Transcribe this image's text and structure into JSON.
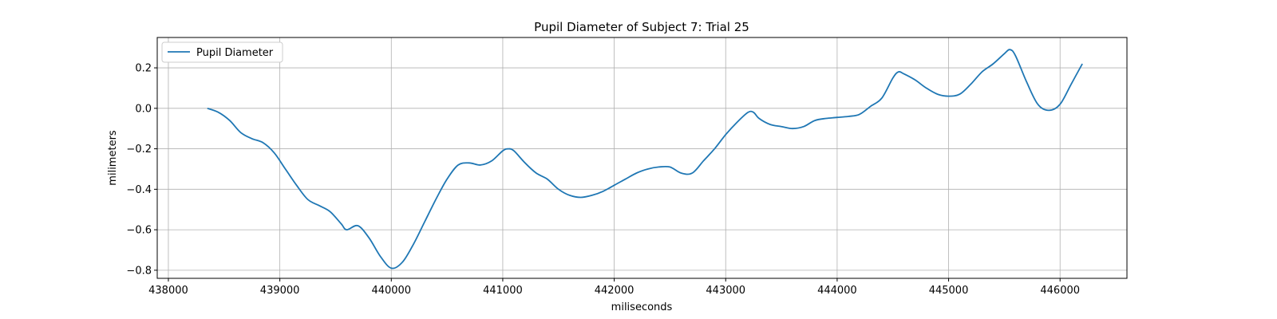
{
  "chart_data": {
    "type": "line",
    "title": "Pupil Diameter of Subject 7: Trial 25",
    "xlabel": "miliseconds",
    "ylabel": "milimeters",
    "xlim": [
      437900,
      446600
    ],
    "ylim": [
      -0.84,
      0.35
    ],
    "xticks": [
      438000,
      439000,
      440000,
      441000,
      442000,
      443000,
      444000,
      445000,
      446000
    ],
    "yticks": [
      -0.8,
      -0.6,
      -0.4,
      -0.2,
      0.0,
      0.2
    ],
    "ytick_labels": [
      "−0.8",
      "−0.6",
      "−0.4",
      "−0.2",
      "0.0",
      "0.2"
    ],
    "grid": true,
    "legend_position": "upper left",
    "color": "#1f77b4",
    "series": [
      {
        "name": "Pupil Diameter",
        "x": [
          438350,
          438450,
          438550,
          438650,
          438750,
          438850,
          438950,
          439050,
          439150,
          439250,
          439350,
          439450,
          439550,
          439600,
          439700,
          439800,
          439900,
          440000,
          440100,
          440200,
          440300,
          440400,
          440500,
          440600,
          440700,
          440800,
          440900,
          441000,
          441050,
          441100,
          441200,
          441300,
          441400,
          441500,
          441600,
          441700,
          441800,
          441900,
          442000,
          442100,
          442200,
          442300,
          442400,
          442500,
          442600,
          442700,
          442800,
          442900,
          443000,
          443100,
          443200,
          443250,
          443300,
          443400,
          443500,
          443600,
          443700,
          443800,
          443900,
          444000,
          444100,
          444200,
          444300,
          444400,
          444500,
          444550,
          444600,
          444700,
          444800,
          444900,
          445000,
          445100,
          445200,
          445300,
          445400,
          445500,
          445550,
          445600,
          445700,
          445800,
          445900,
          446000,
          446100,
          446200
        ],
        "y": [
          0.0,
          -0.02,
          -0.06,
          -0.12,
          -0.15,
          -0.17,
          -0.22,
          -0.3,
          -0.38,
          -0.45,
          -0.48,
          -0.51,
          -0.57,
          -0.6,
          -0.58,
          -0.64,
          -0.73,
          -0.79,
          -0.76,
          -0.67,
          -0.56,
          -0.45,
          -0.35,
          -0.28,
          -0.27,
          -0.28,
          -0.26,
          -0.21,
          -0.2,
          -0.21,
          -0.27,
          -0.32,
          -0.35,
          -0.4,
          -0.43,
          -0.44,
          -0.43,
          -0.41,
          -0.38,
          -0.35,
          -0.32,
          -0.3,
          -0.29,
          -0.29,
          -0.32,
          -0.32,
          -0.26,
          -0.2,
          -0.13,
          -0.07,
          -0.02,
          -0.02,
          -0.05,
          -0.08,
          -0.09,
          -0.1,
          -0.09,
          -0.06,
          -0.05,
          -0.045,
          -0.04,
          -0.03,
          0.01,
          0.05,
          0.15,
          0.18,
          0.17,
          0.14,
          0.1,
          0.07,
          0.06,
          0.07,
          0.12,
          0.18,
          0.22,
          0.27,
          0.29,
          0.26,
          0.13,
          0.02,
          -0.01,
          0.02,
          0.12,
          0.22
        ]
      }
    ]
  }
}
